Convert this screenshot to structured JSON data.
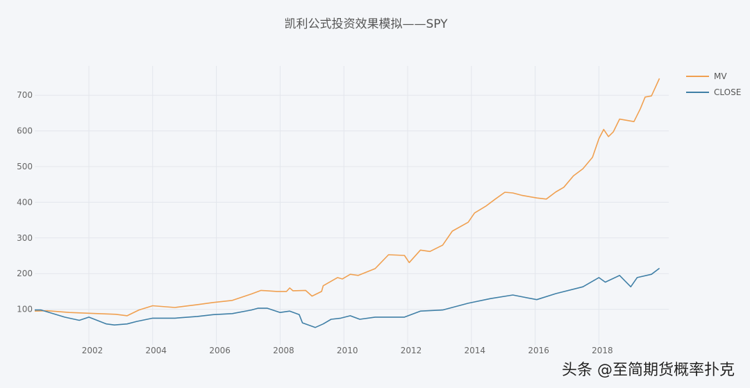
{
  "chart_data": {
    "type": "line",
    "title": "凯利公式投资效果模拟——SPY",
    "xlabel": "",
    "ylabel": "",
    "xlim": [
      2000.3,
      2019.95
    ],
    "ylim": [
      0,
      760
    ],
    "x_ticks": [
      "2002",
      "2004",
      "2006",
      "2008",
      "2010",
      "2012",
      "2014",
      "2016",
      "2018"
    ],
    "y_ticks": [
      "100",
      "200",
      "300",
      "400",
      "500",
      "600",
      "700"
    ],
    "grid": true,
    "legend_position": "top-right",
    "series": [
      {
        "name": "MV",
        "color": "#f0a050",
        "points": [
          [
            2000.3,
            95
          ],
          [
            2000.7,
            96
          ],
          [
            2001.39,
            91
          ],
          [
            2002.0,
            89
          ],
          [
            2002.84,
            86
          ],
          [
            2003.2,
            82
          ],
          [
            2003.57,
            98
          ],
          [
            2004.0,
            110
          ],
          [
            2004.7,
            105
          ],
          [
            2005.4,
            113
          ],
          [
            2005.9,
            119
          ],
          [
            2006.5,
            125
          ],
          [
            2007.1,
            143
          ],
          [
            2007.4,
            153
          ],
          [
            2007.9,
            150
          ],
          [
            2008.2,
            150
          ],
          [
            2008.3,
            160
          ],
          [
            2008.4,
            152
          ],
          [
            2008.8,
            153
          ],
          [
            2009.0,
            137
          ],
          [
            2009.3,
            150
          ],
          [
            2009.35,
            166
          ],
          [
            2009.8,
            189
          ],
          [
            2009.95,
            185
          ],
          [
            2010.2,
            198
          ],
          [
            2010.45,
            195
          ],
          [
            2010.98,
            214
          ],
          [
            2011.4,
            253
          ],
          [
            2011.9,
            251
          ],
          [
            2012.05,
            231
          ],
          [
            2012.4,
            266
          ],
          [
            2012.7,
            262
          ],
          [
            2013.1,
            280
          ],
          [
            2013.4,
            319
          ],
          [
            2013.9,
            344
          ],
          [
            2014.1,
            370
          ],
          [
            2014.45,
            389
          ],
          [
            2014.75,
            409
          ],
          [
            2015.05,
            428
          ],
          [
            2015.3,
            426
          ],
          [
            2015.6,
            419
          ],
          [
            2016.05,
            412
          ],
          [
            2016.35,
            409
          ],
          [
            2016.65,
            429
          ],
          [
            2016.9,
            442
          ],
          [
            2017.2,
            474
          ],
          [
            2017.5,
            494
          ],
          [
            2017.8,
            526
          ],
          [
            2018.0,
            578
          ],
          [
            2018.15,
            604
          ],
          [
            2018.3,
            584
          ],
          [
            2018.45,
            597
          ],
          [
            2018.65,
            633
          ],
          [
            2019.1,
            626
          ],
          [
            2019.3,
            662
          ],
          [
            2019.45,
            695
          ],
          [
            2019.65,
            698
          ],
          [
            2019.9,
            747
          ]
        ]
      },
      {
        "name": "CLOSE",
        "color": "#3f7fa6",
        "points": [
          [
            2000.3,
            98
          ],
          [
            2000.5,
            98
          ],
          [
            2001.24,
            78
          ],
          [
            2001.7,
            69
          ],
          [
            2002.0,
            78
          ],
          [
            2002.55,
            59
          ],
          [
            2002.8,
            56
          ],
          [
            2003.2,
            59
          ],
          [
            2003.5,
            66
          ],
          [
            2004.0,
            75
          ],
          [
            2004.7,
            75
          ],
          [
            2005.4,
            80
          ],
          [
            2005.9,
            85
          ],
          [
            2006.5,
            88
          ],
          [
            2007.1,
            98
          ],
          [
            2007.3,
            103
          ],
          [
            2007.6,
            103
          ],
          [
            2008.0,
            91
          ],
          [
            2008.3,
            95
          ],
          [
            2008.6,
            85
          ],
          [
            2008.7,
            62
          ],
          [
            2009.1,
            49
          ],
          [
            2009.35,
            59
          ],
          [
            2009.6,
            72
          ],
          [
            2009.9,
            75
          ],
          [
            2010.2,
            82
          ],
          [
            2010.5,
            72
          ],
          [
            2010.98,
            78
          ],
          [
            2011.9,
            78
          ],
          [
            2012.4,
            95
          ],
          [
            2013.1,
            98
          ],
          [
            2013.9,
            117
          ],
          [
            2014.6,
            130
          ],
          [
            2015.3,
            140
          ],
          [
            2016.05,
            127
          ],
          [
            2016.65,
            144
          ],
          [
            2017.5,
            163
          ],
          [
            2018.0,
            189
          ],
          [
            2018.2,
            176
          ],
          [
            2018.65,
            195
          ],
          [
            2019.0,
            163
          ],
          [
            2019.2,
            189
          ],
          [
            2019.65,
            198
          ],
          [
            2019.9,
            215
          ]
        ]
      }
    ]
  },
  "watermark": "头条 @至简期货概率扑克"
}
